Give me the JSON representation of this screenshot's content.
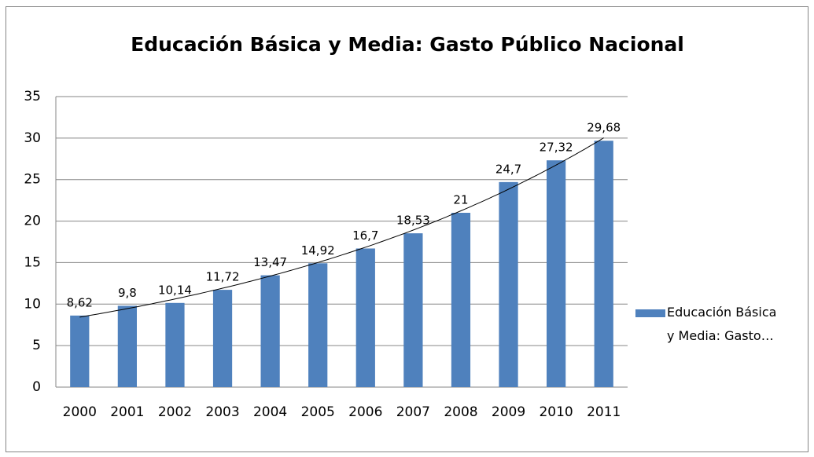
{
  "chart_data": {
    "type": "bar",
    "title": "Educación Básica y Media: Gasto Público Nacional",
    "categories": [
      "2000",
      "2001",
      "2002",
      "2003",
      "2004",
      "2005",
      "2006",
      "2007",
      "2008",
      "2009",
      "2010",
      "2011"
    ],
    "series": [
      {
        "name": "Educación Básica y Media: Gasto…",
        "color": "#4f81bd",
        "values": [
          8.62,
          9.8,
          10.14,
          11.72,
          13.47,
          14.92,
          16.7,
          18.53,
          21,
          24.7,
          27.32,
          29.68
        ],
        "value_labels": [
          "8,62",
          "9,8",
          "10,14",
          "11,72",
          "13,47",
          "14,92",
          "16,7",
          "18,53",
          "21",
          "24,7",
          "27,32",
          "29,68"
        ]
      }
    ],
    "trendline": "exponential",
    "ylim": [
      0,
      35
    ],
    "yticks": [
      0,
      5,
      10,
      15,
      20,
      25,
      30,
      35
    ],
    "grid": true,
    "legend": "right"
  }
}
